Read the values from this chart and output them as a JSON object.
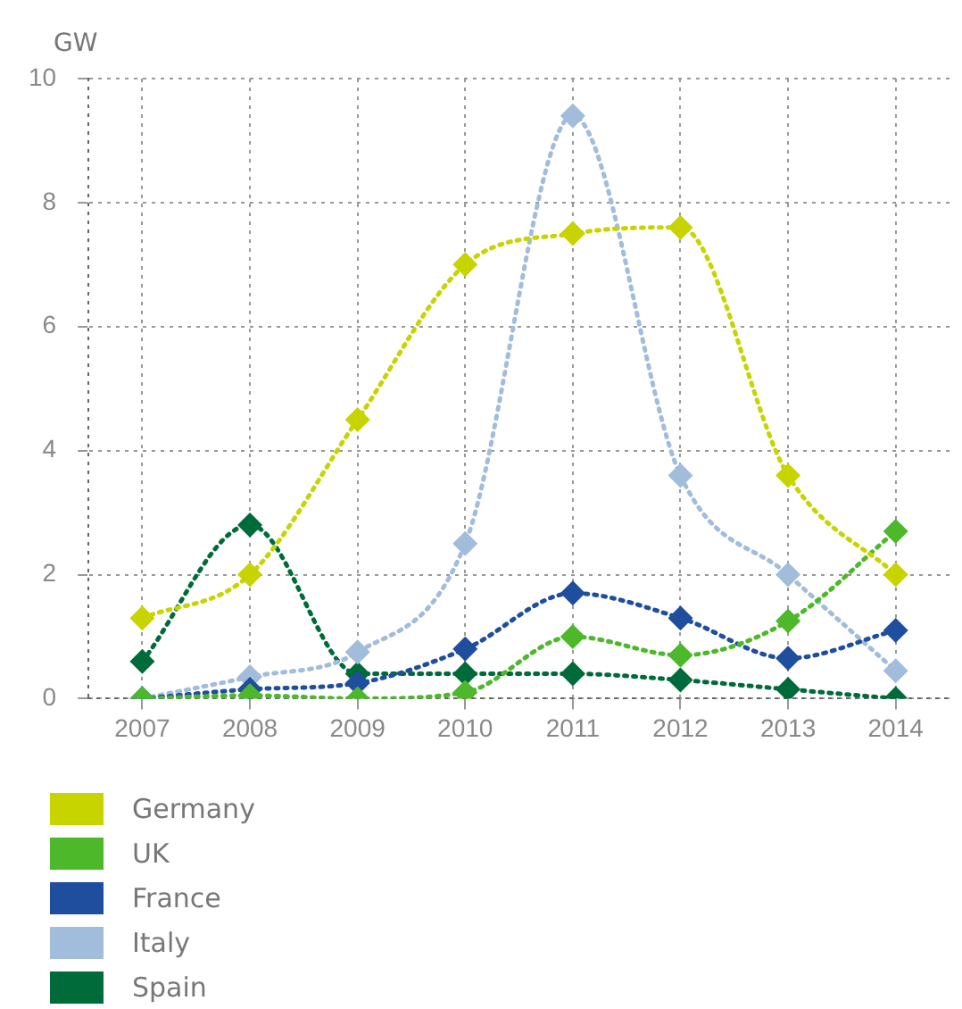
{
  "chart_data": {
    "type": "line",
    "ylabel": "GW",
    "categories": [
      "2007",
      "2008",
      "2009",
      "2010",
      "2011",
      "2012",
      "2013",
      "2014"
    ],
    "series": [
      {
        "name": "Germany",
        "color": "#c8d400",
        "values": [
          1.3,
          2.0,
          4.5,
          7.0,
          7.5,
          7.6,
          3.6,
          2.0
        ]
      },
      {
        "name": "UK",
        "color": "#4cb82a",
        "values": [
          0,
          0.05,
          0,
          0.1,
          1.0,
          0.7,
          1.25,
          2.7
        ]
      },
      {
        "name": "France",
        "color": "#1f4e9e",
        "values": [
          0,
          0.15,
          0.25,
          0.8,
          1.7,
          1.3,
          0.65,
          1.1
        ]
      },
      {
        "name": "Italy",
        "color": "#a2bcdc",
        "values": [
          0,
          0.35,
          0.75,
          2.5,
          9.4,
          3.6,
          2.0,
          0.45
        ]
      },
      {
        "name": "Spain",
        "color": "#006b3a",
        "values": [
          0.6,
          2.8,
          0.4,
          0.4,
          0.4,
          0.3,
          0.15,
          0
        ]
      }
    ],
    "ylim": [
      0,
      10
    ],
    "yticks": [
      0,
      2,
      4,
      6,
      8,
      10
    ],
    "grid": true,
    "legend": "bottom",
    "marker": "diamond",
    "line_style": "dotted"
  }
}
